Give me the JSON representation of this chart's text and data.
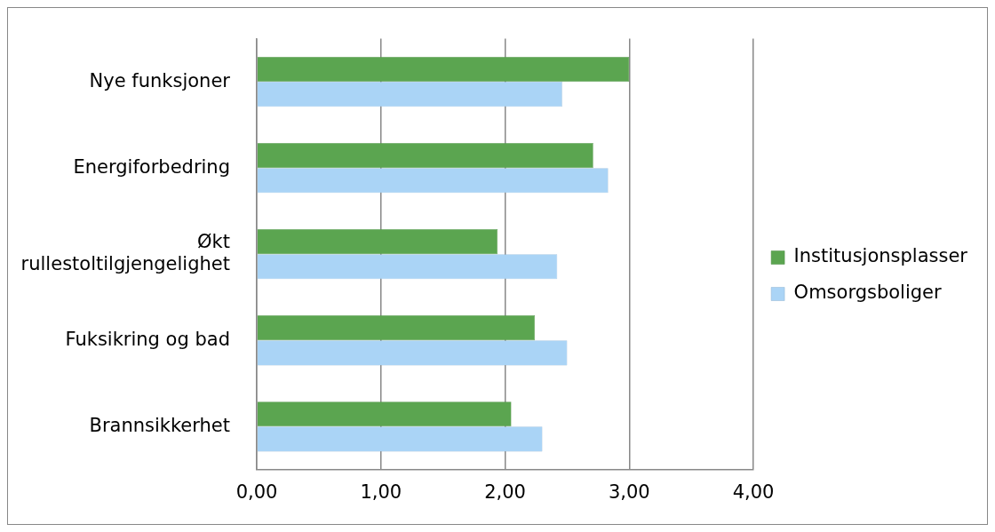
{
  "chart_data": {
    "type": "bar",
    "orientation": "horizontal",
    "categories": [
      "Nye funksjoner",
      "Energiforbedring",
      "Økt rullestoltilgjengelighet",
      "Fuksikring og bad",
      "Brannsikkerhet"
    ],
    "series": [
      {
        "name": "Institusjonsplasser",
        "color": "#5ba550",
        "values": [
          3.0,
          2.71,
          1.94,
          2.24,
          2.05
        ]
      },
      {
        "name": "Omsorgsboliger",
        "color": "#aad4f6",
        "values": [
          2.46,
          2.83,
          2.42,
          2.5,
          2.3
        ]
      }
    ],
    "xlim": [
      0,
      4
    ],
    "xticks": [
      {
        "value": 0,
        "label": "0,00"
      },
      {
        "value": 1,
        "label": "1,00"
      },
      {
        "value": 2,
        "label": "2,00"
      },
      {
        "value": 3,
        "label": "3,00"
      },
      {
        "value": 4,
        "label": "4,00"
      }
    ],
    "grid": "x",
    "legend": "right"
  }
}
